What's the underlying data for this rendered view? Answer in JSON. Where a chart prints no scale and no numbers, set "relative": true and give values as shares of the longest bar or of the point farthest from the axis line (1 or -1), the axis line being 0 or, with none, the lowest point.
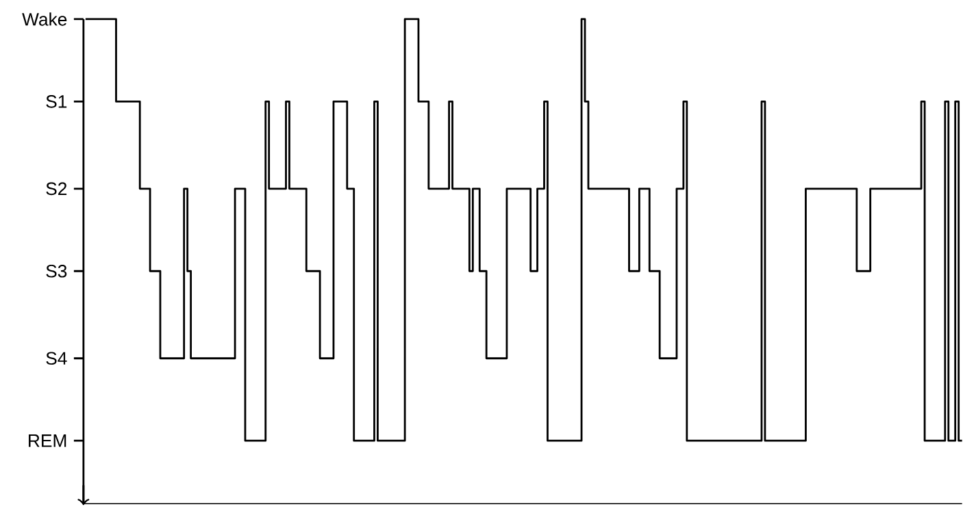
{
  "chart_data": {
    "type": "step",
    "relative": true,
    "categories": [
      null,
      null,
      null,
      null,
      null,
      null,
      null,
      null,
      null,
      null,
      null,
      null,
      null,
      null,
      null,
      null,
      null,
      null,
      null,
      null,
      null,
      null,
      null,
      null,
      null,
      null,
      null,
      null,
      null,
      null,
      null,
      null,
      null,
      null,
      null,
      null,
      null,
      null,
      null,
      null,
      null,
      null,
      null,
      null,
      null,
      null,
      null,
      null,
      null,
      null,
      null,
      null,
      null,
      null,
      null,
      null,
      null,
      null,
      null,
      null,
      null,
      null,
      null,
      null,
      null,
      null,
      null,
      null,
      null,
      null,
      null,
      null,
      null,
      null,
      null,
      null,
      null,
      null,
      null,
      null,
      null,
      null,
      null,
      null,
      null,
      null,
      null,
      null,
      null,
      null,
      null,
      null,
      null,
      null,
      null,
      null,
      null,
      null,
      null,
      null,
      null,
      null,
      null,
      null,
      null,
      null,
      null,
      null,
      null,
      null,
      null,
      null,
      null,
      null,
      null,
      null,
      null,
      null,
      null,
      null,
      null,
      null,
      null,
      null,
      null,
      null,
      null,
      null,
      null,
      null,
      null,
      null,
      null,
      null,
      null,
      null,
      null,
      null,
      null,
      null,
      null,
      null,
      null,
      null,
      null,
      null,
      null,
      null,
      null,
      null,
      null,
      null,
      null,
      null,
      null,
      null,
      null,
      null,
      null,
      null,
      null,
      null,
      null,
      null,
      null,
      null,
      null,
      null,
      null,
      null,
      null,
      null,
      null,
      null,
      null,
      null,
      null,
      null,
      null,
      null,
      null,
      null,
      null,
      null,
      null,
      null,
      null,
      null,
      null,
      null,
      null,
      null,
      null,
      null,
      null,
      null,
      null,
      null,
      null,
      null,
      null,
      null,
      null,
      null,
      null,
      null,
      null,
      null,
      null,
      null,
      null,
      null,
      null,
      null,
      null,
      null,
      null,
      null,
      null,
      null,
      null,
      null,
      null,
      null,
      null,
      null,
      null,
      null,
      null,
      null,
      null,
      null,
      null,
      null,
      null,
      null,
      null,
      null,
      null,
      null,
      null,
      null,
      null,
      null,
      null,
      null,
      null,
      null,
      null,
      null,
      null,
      null,
      null,
      null,
      null,
      null,
      null,
      null
    ],
    "annotations": [
      "Wake",
      "S1",
      "S2",
      "S3",
      "S4",
      "REM"
    ],
    "series": [
      {
        "color": "#000000",
        "values": [
          1,
          1,
          1,
          1,
          1,
          1,
          1,
          1,
          1,
          0.83,
          0.83,
          0.83,
          0.83,
          0.83,
          0.83,
          0.83,
          0.65,
          0.65,
          0.65,
          0.48,
          0.48,
          0.48,
          0.3,
          0.3,
          0.3,
          0.3,
          0.3,
          0.3,
          0.3,
          0.65,
          0.48,
          0.3,
          0.3,
          0.3,
          0.3,
          0.3,
          0.3,
          0.3,
          0.3,
          0.3,
          0.3,
          0.3,
          0.3,
          0.3,
          0.65,
          0.65,
          0.65,
          0.13,
          0.13,
          0.13,
          0.13,
          0.13,
          0.13,
          0.83,
          0.65,
          0.65,
          0.65,
          0.65,
          0.65,
          0.83,
          0.65,
          0.65,
          0.65,
          0.65,
          0.65,
          0.48,
          0.48,
          0.48,
          0.48,
          0.3,
          0.3,
          0.3,
          0.3,
          0.83,
          0.83,
          0.83,
          0.83,
          0.65,
          0.65,
          0.13,
          0.13,
          0.13,
          0.13,
          0.13,
          0.13,
          0.83,
          0.13,
          0.13,
          0.13,
          0.13,
          0.13,
          0.13,
          0.13,
          0.13,
          1,
          1,
          1,
          1,
          0.83,
          0.83,
          0.83,
          0.65,
          0.65,
          0.65,
          0.65,
          0.65,
          0.65,
          0.83,
          0.65,
          0.65,
          0.65,
          0.65,
          0.65,
          0.48,
          0.65,
          0.65,
          0.48,
          0.48,
          0.3,
          0.3,
          0.3,
          0.3,
          0.3,
          0.3,
          0.65,
          0.65,
          0.65,
          0.65,
          0.65,
          0.65,
          0.65,
          0.48,
          0.48,
          0.65,
          0.65,
          0.83,
          0.13,
          0.13,
          0.13,
          0.13,
          0.13,
          0.13,
          0.13,
          0.13,
          0.13,
          0.13,
          1,
          0.83,
          0.65,
          0.65,
          0.65,
          0.65,
          0.65,
          0.65,
          0.65,
          0.65,
          0.65,
          0.65,
          0.65,
          0.65,
          0.48,
          0.48,
          0.48,
          0.65,
          0.65,
          0.65,
          0.48,
          0.48,
          0.48,
          0.3,
          0.3,
          0.3,
          0.3,
          0.3,
          0.65,
          0.65,
          0.83,
          0.13,
          0.13,
          0.13,
          0.13,
          0.13,
          0.13,
          0.13,
          0.13,
          0.13,
          0.13,
          0.13,
          0.13,
          0.13,
          0.13,
          0.13,
          0.13,
          0.13,
          0.13,
          0.13,
          0.13,
          0.13,
          0.13,
          0.83,
          0.13,
          0.13,
          0.13,
          0.13,
          0.13,
          0.13,
          0.13,
          0.13,
          0.13,
          0.13,
          0.13,
          0.13,
          0.65,
          0.65,
          0.65,
          0.65,
          0.65,
          0.65,
          0.65,
          0.65,
          0.65,
          0.65,
          0.65,
          0.65,
          0.65,
          0.65,
          0.65,
          0.48,
          0.48,
          0.48,
          0.48,
          0.65,
          0.65,
          0.65,
          0.65,
          0.65,
          0.65,
          0.65,
          0.65,
          0.65,
          0.65,
          0.65,
          0.65,
          0.65,
          0.65,
          0.65,
          0.83,
          0.13,
          0.13,
          0.13,
          0.13,
          0.13,
          0.13,
          0.83,
          0.13,
          0.13,
          0.83,
          0.13
        ]
      }
    ],
    "tick_labels": "y",
    "marker": "none",
    "line_style": "solid"
  }
}
